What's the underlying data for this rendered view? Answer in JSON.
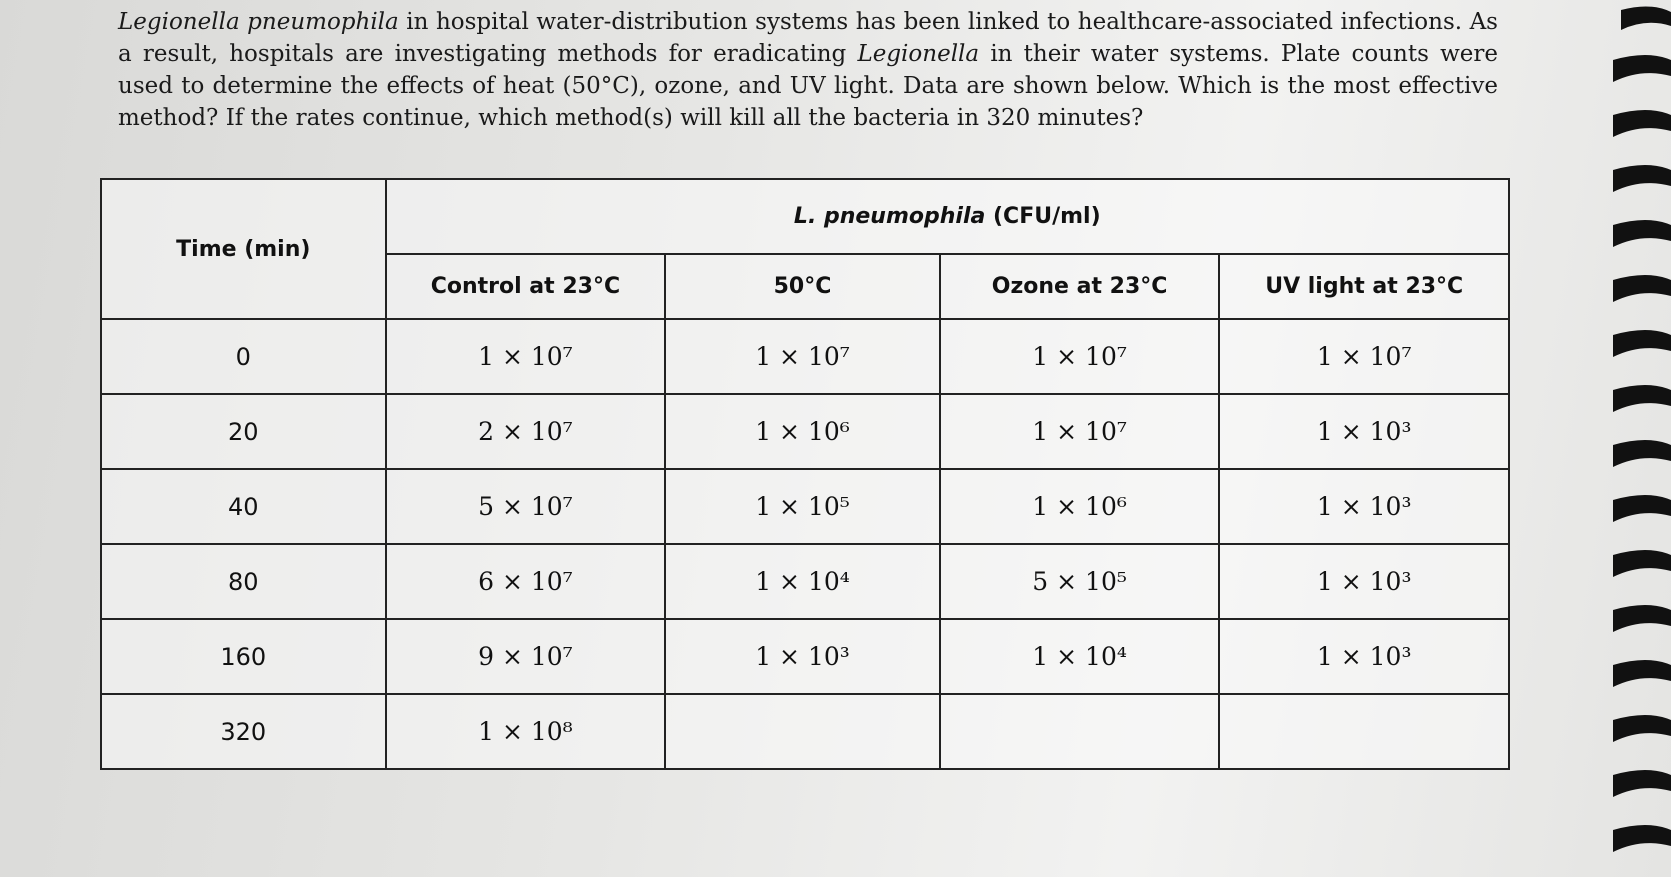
{
  "question": {
    "runs": [
      {
        "text": "Legionella pneumophila",
        "italic": true
      },
      {
        "text": " in hospital water-distribution systems has been linked to healthcare-associated infections. As a result, hospitals are investigating methods for eradicating ",
        "italic": false
      },
      {
        "text": "Legionella",
        "italic": true
      },
      {
        "text": " in their water systems. Plate counts were used to determine the effects of heat (50°C), ozone, and UV light. Data are shown below. Which is the most effective method? If the rates continue, which method(s) will kill all the bacteria in 320 minutes?",
        "italic": false
      }
    ]
  },
  "table": {
    "group_header": {
      "runs": [
        {
          "text": "L. pneumophila",
          "italic": true
        },
        {
          "text": " (CFU/ml)",
          "italic": false
        }
      ]
    },
    "columns": [
      "Time (min)",
      "Control at 23°C",
      "50°C",
      "Ozone at 23°C",
      "UV light at 23°C"
    ],
    "rows": [
      [
        "0",
        "1 × 10⁷",
        "1 × 10⁷",
        "1 × 10⁷",
        "1 × 10⁷"
      ],
      [
        "20",
        "2 × 10⁷",
        "1 × 10⁶",
        "1 × 10⁷",
        "1 × 10³"
      ],
      [
        "40",
        "5 × 10⁷",
        "1 × 10⁵",
        "1 × 10⁶",
        "1 × 10³"
      ],
      [
        "80",
        "6 × 10⁷",
        "1 × 10⁴",
        "5 × 10⁵",
        "1 × 10³"
      ],
      [
        "160",
        "9 × 10⁷",
        "1 × 10³",
        "1 × 10⁴",
        "1 × 10³"
      ],
      [
        "320",
        "1 × 10⁸",
        null,
        null,
        null
      ]
    ]
  }
}
